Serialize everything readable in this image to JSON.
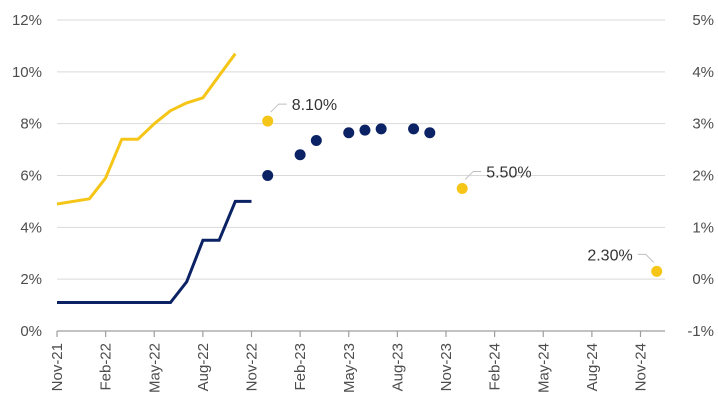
{
  "chart_data": {
    "type": "line",
    "title": "",
    "xlabel": "",
    "ylabel": "",
    "x_ticks": [
      "Nov-21",
      "Feb-22",
      "May-22",
      "Aug-22",
      "Nov-22",
      "Feb-23",
      "May-23",
      "Aug-23",
      "Nov-23",
      "Feb-24",
      "May-24",
      "Aug-24",
      "Nov-24"
    ],
    "y_left": {
      "ticks": [
        "0%",
        "2%",
        "4%",
        "6%",
        "8%",
        "10%",
        "12%"
      ],
      "range": [
        0,
        12
      ]
    },
    "y_right": {
      "ticks": [
        "-1%",
        "0%",
        "1%",
        "2%",
        "3%",
        "4%",
        "5%"
      ],
      "range": [
        -1,
        5
      ]
    },
    "grid": true,
    "series": [
      {
        "name": "yellow-line",
        "axis": "left",
        "style": "line",
        "color": "#f5c518",
        "points": [
          [
            0,
            4.9
          ],
          [
            2,
            5.1
          ],
          [
            3,
            5.9
          ],
          [
            4,
            7.4
          ],
          [
            5,
            7.4
          ],
          [
            6,
            8.0
          ],
          [
            7,
            8.5
          ],
          [
            8,
            8.8
          ],
          [
            9,
            9.0
          ],
          [
            11,
            10.7
          ]
        ]
      },
      {
        "name": "navy-line",
        "axis": "right",
        "style": "step",
        "color": "#0b2265",
        "points": [
          [
            0,
            -0.45
          ],
          [
            7,
            -0.45
          ],
          [
            8,
            -0.05
          ],
          [
            9,
            0.75
          ],
          [
            10,
            0.75
          ],
          [
            11,
            1.5
          ],
          [
            12,
            1.5
          ]
        ]
      },
      {
        "name": "navy-dots",
        "axis": "left",
        "style": "dots",
        "color": "#0b2265",
        "points": [
          [
            13,
            6.0
          ],
          [
            15,
            6.8
          ],
          [
            16,
            7.35
          ],
          [
            18,
            7.65
          ],
          [
            19,
            7.75
          ],
          [
            20,
            7.8
          ],
          [
            22,
            7.8
          ],
          [
            23,
            7.65
          ]
        ]
      },
      {
        "name": "yellow-dots",
        "axis": "left",
        "style": "dots",
        "color": "#f5c518",
        "points": [
          [
            13,
            8.1
          ],
          [
            25,
            5.5
          ],
          [
            37,
            2.3
          ]
        ]
      }
    ],
    "annotations": [
      {
        "text": "8.10%",
        "x": 13,
        "y": 8.1,
        "pos": "upper-right"
      },
      {
        "text": "5.50%",
        "x": 25,
        "y": 5.5,
        "pos": "upper-right"
      },
      {
        "text": "2.30%",
        "x": 37,
        "y": 2.3,
        "pos": "upper-left"
      }
    ]
  }
}
